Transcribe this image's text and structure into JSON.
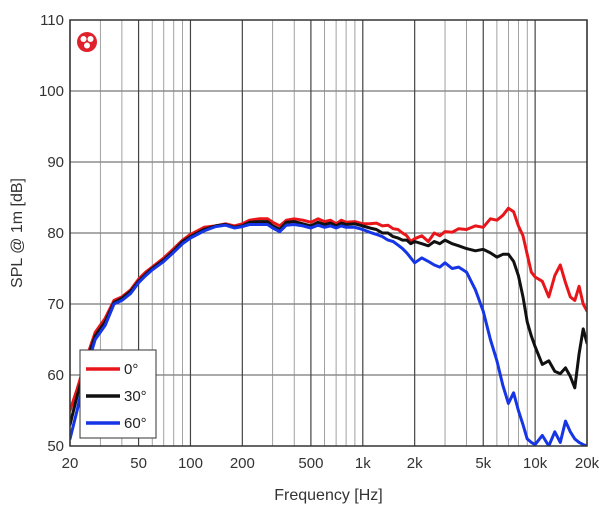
{
  "chart_data": {
    "type": "line",
    "xlabel": "Frequency [Hz]",
    "ylabel": "SPL @ 1m [dB]",
    "x_scale": "log",
    "xlim": [
      20,
      20000
    ],
    "ylim": [
      50,
      110
    ],
    "x_ticks": [
      {
        "value": 20,
        "label": "20"
      },
      {
        "value": 50,
        "label": "50"
      },
      {
        "value": 100,
        "label": "100"
      },
      {
        "value": 200,
        "label": "200"
      },
      {
        "value": 500,
        "label": "500"
      },
      {
        "value": 1000,
        "label": "1k"
      },
      {
        "value": 2000,
        "label": "2k"
      },
      {
        "value": 5000,
        "label": "5k"
      },
      {
        "value": 10000,
        "label": "10k"
      },
      {
        "value": 20000,
        "label": "20k"
      }
    ],
    "y_ticks": [
      {
        "value": 50,
        "label": "50"
      },
      {
        "value": 60,
        "label": "60"
      },
      {
        "value": 70,
        "label": "70"
      },
      {
        "value": 80,
        "label": "80"
      },
      {
        "value": 90,
        "label": "90"
      },
      {
        "value": 100,
        "label": "100"
      },
      {
        "value": 110,
        "label": "110"
      }
    ],
    "grid": true,
    "legend_position": "bottom-left",
    "series": [
      {
        "name": "0°",
        "color": "#e8161b",
        "points": [
          [
            20,
            55
          ],
          [
            22,
            58
          ],
          [
            25,
            62.5
          ],
          [
            28,
            66
          ],
          [
            32,
            68
          ],
          [
            36,
            70.5
          ],
          [
            40,
            71
          ],
          [
            45,
            72
          ],
          [
            50,
            73.5
          ],
          [
            55,
            74.5
          ],
          [
            60,
            75.2
          ],
          [
            70,
            76.5
          ],
          [
            80,
            77.8
          ],
          [
            90,
            79
          ],
          [
            100,
            79.8
          ],
          [
            120,
            80.8
          ],
          [
            140,
            81
          ],
          [
            160,
            81.3
          ],
          [
            180,
            81
          ],
          [
            200,
            81.3
          ],
          [
            220,
            81.8
          ],
          [
            250,
            82
          ],
          [
            280,
            82
          ],
          [
            300,
            81.5
          ],
          [
            330,
            81
          ],
          [
            360,
            81.8
          ],
          [
            400,
            82
          ],
          [
            450,
            81.8
          ],
          [
            500,
            81.5
          ],
          [
            550,
            82
          ],
          [
            600,
            81.6
          ],
          [
            650,
            81.8
          ],
          [
            700,
            81.3
          ],
          [
            750,
            81.8
          ],
          [
            800,
            81.5
          ],
          [
            900,
            81.6
          ],
          [
            1000,
            81.3
          ],
          [
            1100,
            81.3
          ],
          [
            1200,
            81.4
          ],
          [
            1300,
            81
          ],
          [
            1400,
            81.1
          ],
          [
            1500,
            80.6
          ],
          [
            1600,
            80.5
          ],
          [
            1700,
            80
          ],
          [
            1800,
            79.6
          ],
          [
            1900,
            78.8
          ],
          [
            2000,
            79.2
          ],
          [
            2200,
            79.6
          ],
          [
            2400,
            78.8
          ],
          [
            2600,
            80
          ],
          [
            2800,
            79.6
          ],
          [
            3000,
            80.2
          ],
          [
            3300,
            80.1
          ],
          [
            3600,
            80.6
          ],
          [
            4000,
            80.5
          ],
          [
            4500,
            81
          ],
          [
            5000,
            80.8
          ],
          [
            5500,
            82
          ],
          [
            6000,
            81.8
          ],
          [
            6500,
            82.5
          ],
          [
            7000,
            83.5
          ],
          [
            7500,
            83
          ],
          [
            8000,
            81
          ],
          [
            8500,
            79.6
          ],
          [
            9000,
            77
          ],
          [
            9500,
            74.5
          ],
          [
            10000,
            73.8
          ],
          [
            11000,
            73.2
          ],
          [
            12000,
            71
          ],
          [
            13000,
            74
          ],
          [
            14000,
            75.5
          ],
          [
            15000,
            73
          ],
          [
            16000,
            71
          ],
          [
            17000,
            70.5
          ],
          [
            18000,
            72.5
          ],
          [
            19000,
            70
          ],
          [
            20000,
            69
          ]
        ]
      },
      {
        "name": "30°",
        "color": "#111111",
        "points": [
          [
            20,
            53
          ],
          [
            22,
            57
          ],
          [
            25,
            62
          ],
          [
            28,
            65.5
          ],
          [
            32,
            67.5
          ],
          [
            36,
            70.2
          ],
          [
            40,
            70.8
          ],
          [
            45,
            71.8
          ],
          [
            50,
            73.2
          ],
          [
            55,
            74.2
          ],
          [
            60,
            75
          ],
          [
            70,
            76.2
          ],
          [
            80,
            77.5
          ],
          [
            90,
            78.8
          ],
          [
            100,
            79.5
          ],
          [
            120,
            80.5
          ],
          [
            140,
            81
          ],
          [
            160,
            81.2
          ],
          [
            180,
            80.8
          ],
          [
            200,
            81
          ],
          [
            220,
            81.5
          ],
          [
            250,
            81.6
          ],
          [
            280,
            81.6
          ],
          [
            300,
            81
          ],
          [
            330,
            80.5
          ],
          [
            360,
            81.5
          ],
          [
            400,
            81.6
          ],
          [
            450,
            81.3
          ],
          [
            500,
            81
          ],
          [
            550,
            81.5
          ],
          [
            600,
            81.2
          ],
          [
            650,
            81.4
          ],
          [
            700,
            81
          ],
          [
            750,
            81.4
          ],
          [
            800,
            81.2
          ],
          [
            900,
            81.3
          ],
          [
            1000,
            81
          ],
          [
            1100,
            80.7
          ],
          [
            1200,
            80.5
          ],
          [
            1300,
            80
          ],
          [
            1400,
            80
          ],
          [
            1500,
            79.5
          ],
          [
            1600,
            79.3
          ],
          [
            1700,
            79
          ],
          [
            1800,
            79
          ],
          [
            1900,
            78.5
          ],
          [
            2000,
            78.8
          ],
          [
            2200,
            78.5
          ],
          [
            2400,
            78.2
          ],
          [
            2600,
            78.8
          ],
          [
            2800,
            78.5
          ],
          [
            3000,
            79
          ],
          [
            3300,
            78.5
          ],
          [
            3600,
            78.2
          ],
          [
            4000,
            77.8
          ],
          [
            4500,
            77.5
          ],
          [
            5000,
            77.7
          ],
          [
            5500,
            77.2
          ],
          [
            6000,
            76.6
          ],
          [
            6500,
            77
          ],
          [
            7000,
            77
          ],
          [
            7500,
            76
          ],
          [
            8000,
            74
          ],
          [
            8500,
            71
          ],
          [
            9000,
            67.5
          ],
          [
            9500,
            65.5
          ],
          [
            10000,
            64
          ],
          [
            11000,
            61.5
          ],
          [
            12000,
            62
          ],
          [
            13000,
            60.5
          ],
          [
            14000,
            60.2
          ],
          [
            15000,
            61
          ],
          [
            16000,
            59.8
          ],
          [
            17000,
            58.2
          ],
          [
            18000,
            63
          ],
          [
            19000,
            66.5
          ],
          [
            20000,
            64.5
          ]
        ]
      },
      {
        "name": "60°",
        "color": "#1535e6",
        "points": [
          [
            20,
            51
          ],
          [
            22,
            55
          ],
          [
            25,
            61
          ],
          [
            28,
            65
          ],
          [
            32,
            67
          ],
          [
            36,
            70
          ],
          [
            40,
            70.5
          ],
          [
            45,
            71.5
          ],
          [
            50,
            73
          ],
          [
            55,
            74
          ],
          [
            60,
            74.8
          ],
          [
            70,
            76
          ],
          [
            80,
            77.3
          ],
          [
            90,
            78.5
          ],
          [
            100,
            79.3
          ],
          [
            120,
            80.3
          ],
          [
            140,
            80.9
          ],
          [
            160,
            81.1
          ],
          [
            180,
            80.7
          ],
          [
            200,
            80.9
          ],
          [
            220,
            81.2
          ],
          [
            250,
            81.2
          ],
          [
            280,
            81.2
          ],
          [
            300,
            80.7
          ],
          [
            330,
            80.2
          ],
          [
            360,
            81.1
          ],
          [
            400,
            81.2
          ],
          [
            450,
            81
          ],
          [
            500,
            80.7
          ],
          [
            550,
            81.1
          ],
          [
            600,
            80.8
          ],
          [
            650,
            81
          ],
          [
            700,
            80.7
          ],
          [
            750,
            81
          ],
          [
            800,
            80.8
          ],
          [
            900,
            80.8
          ],
          [
            1000,
            80.5
          ],
          [
            1100,
            80.1
          ],
          [
            1200,
            79.8
          ],
          [
            1300,
            79.5
          ],
          [
            1400,
            79
          ],
          [
            1500,
            78.8
          ],
          [
            1600,
            78.3
          ],
          [
            1700,
            77.8
          ],
          [
            1800,
            77.2
          ],
          [
            1900,
            76.5
          ],
          [
            2000,
            75.8
          ],
          [
            2200,
            76.5
          ],
          [
            2400,
            76
          ],
          [
            2600,
            75.5
          ],
          [
            2800,
            75.2
          ],
          [
            3000,
            75.8
          ],
          [
            3300,
            75
          ],
          [
            3600,
            75.2
          ],
          [
            4000,
            74.5
          ],
          [
            4500,
            72
          ],
          [
            5000,
            69
          ],
          [
            5500,
            65
          ],
          [
            6000,
            62
          ],
          [
            6500,
            58.5
          ],
          [
            7000,
            56
          ],
          [
            7500,
            57.5
          ],
          [
            8000,
            55
          ],
          [
            8500,
            53
          ],
          [
            9000,
            51
          ],
          [
            9500,
            50.5
          ],
          [
            10000,
            50.2
          ],
          [
            11000,
            51.5
          ],
          [
            12000,
            50
          ],
          [
            13000,
            52
          ],
          [
            14000,
            50.5
          ],
          [
            15000,
            53.5
          ],
          [
            16000,
            52
          ],
          [
            17000,
            51
          ],
          [
            18000,
            50.5
          ],
          [
            19000,
            50.2
          ],
          [
            20000,
            50
          ]
        ]
      }
    ]
  },
  "logo_icon": "brand-badge-icon"
}
